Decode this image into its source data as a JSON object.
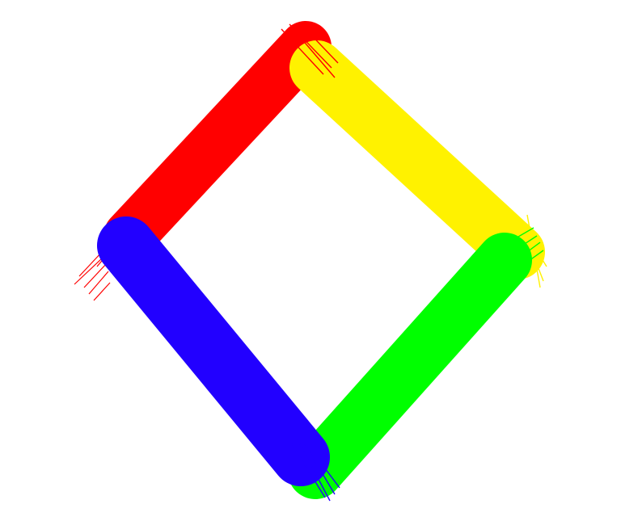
{
  "artwork": {
    "subject": "diamond-of-brush-strokes",
    "colors": {
      "red": "#ff0000",
      "yellow": "#fff200",
      "green": "#00ff00",
      "blue": "#2200ff",
      "background": "#ffffff"
    }
  }
}
